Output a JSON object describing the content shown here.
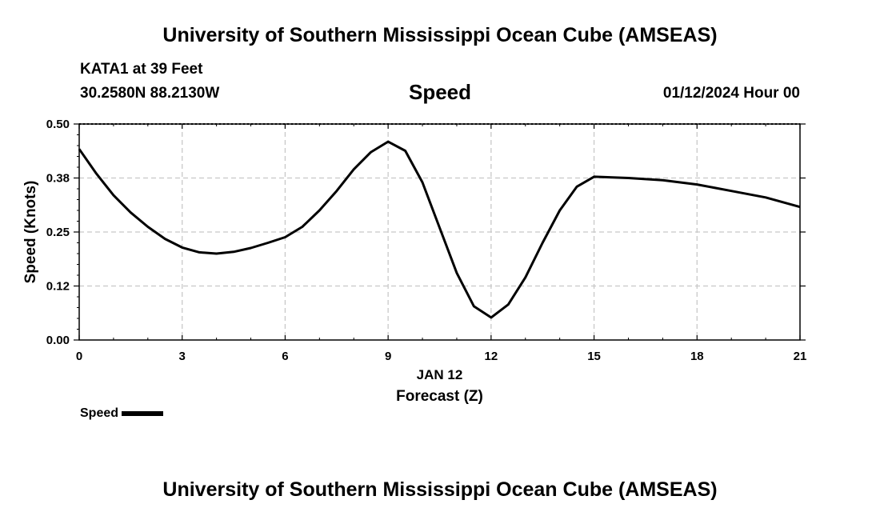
{
  "header": {
    "title": "University of Southern Mississippi Ocean Cube (AMSEAS)",
    "station": "KATA1 at 39 Feet",
    "coords": "30.2580N  88.2130W",
    "variable": "Speed",
    "datetime": "01/12/2024 Hour 00"
  },
  "footer": {
    "title": "University of Southern Mississippi Ocean Cube (AMSEAS)"
  },
  "legend": {
    "label": "Speed"
  },
  "chart_data": {
    "type": "line",
    "title": "Speed",
    "xlabel": "Forecast (Z)",
    "xlabel_date": "JAN 12",
    "ylabel": "Speed (Knots)",
    "xlim": [
      0,
      21
    ],
    "ylim": [
      0,
      0.5
    ],
    "xticks": [
      0,
      3,
      6,
      9,
      12,
      15,
      18,
      21
    ],
    "yticks": [
      0.0,
      0.125,
      0.25,
      0.375,
      0.5
    ],
    "ytick_labels": [
      "0.00",
      "0.12",
      "0.25",
      "0.38",
      "0.50"
    ],
    "grid": true,
    "line_color": "#000000",
    "grid_color": "#c8c8c8",
    "series": [
      {
        "name": "Speed",
        "x": [
          0,
          0.5,
          1,
          1.5,
          2,
          2.5,
          3,
          3.5,
          4,
          4.5,
          5,
          5.5,
          6,
          6.5,
          7,
          7.5,
          8,
          8.5,
          9,
          9.5,
          10,
          10.5,
          11,
          11.5,
          12,
          12.5,
          13,
          13.5,
          14,
          14.5,
          15,
          16,
          17,
          18,
          19,
          20,
          21
        ],
        "values": [
          0.442,
          0.385,
          0.335,
          0.295,
          0.262,
          0.234,
          0.214,
          0.203,
          0.2,
          0.204,
          0.213,
          0.225,
          0.238,
          0.262,
          0.3,
          0.345,
          0.395,
          0.435,
          0.459,
          0.438,
          0.365,
          0.26,
          0.155,
          0.078,
          0.052,
          0.082,
          0.145,
          0.225,
          0.3,
          0.355,
          0.378,
          0.375,
          0.37,
          0.36,
          0.345,
          0.33,
          0.308
        ]
      }
    ]
  }
}
